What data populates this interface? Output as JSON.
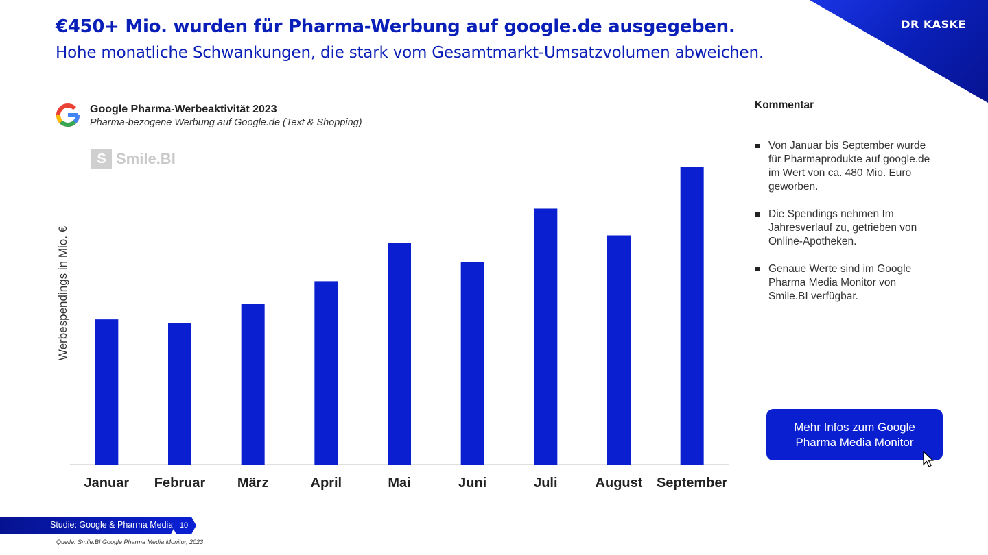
{
  "header": {
    "headline": "€450+ Mio. wurden für Pharma-Werbung auf google.de ausgegeben.",
    "subheadline": "Hohe monatliche Schwankungen, die stark vom Gesamtmarkt-Umsatzvolumen abweichen.",
    "brand": "DR KASKE"
  },
  "watermark": {
    "icon": "smile-bi-logo-icon",
    "text": "Smile.BI"
  },
  "chart_data": {
    "type": "bar",
    "title": "Google Pharma-Werbeaktivität 2023",
    "subtitle": "Pharma-bezogene Werbung auf Google.de (Text & Shopping)",
    "ylabel": "Werbespendings in Mio. €",
    "xlabel": "",
    "categories": [
      "Januar",
      "Februar",
      "März",
      "April",
      "Mai",
      "Juni",
      "Juli",
      "August",
      "September"
    ],
    "values": [
      38,
      37,
      42,
      48,
      58,
      53,
      67,
      60,
      78
    ],
    "ylim": [
      0,
      80
    ],
    "grid": false,
    "color": "#0a1fcf"
  },
  "comment": {
    "title": "Kommentar",
    "items": [
      "Von Januar bis September wurde für Pharmaprodukte auf google.de im Wert von ca. 480 Mio. Euro geworben.",
      "Die Spendings nehmen Im Jahresverlauf zu, getrieben von Online-Apotheken.",
      "Genaue Werte sind im Google Pharma Media Monitor von Smile.BI verfügbar."
    ]
  },
  "cta": {
    "label": "Mehr Infos zum Google Pharma Media Monitor"
  },
  "footer": {
    "study": "Studie: Google & Pharma Media",
    "page": "10",
    "source": "Quelle: Smile.BI Google Pharma Media Monitor, 2023"
  },
  "colors": {
    "accent": "#0a1fb8",
    "bar": "#0a1fcf"
  }
}
